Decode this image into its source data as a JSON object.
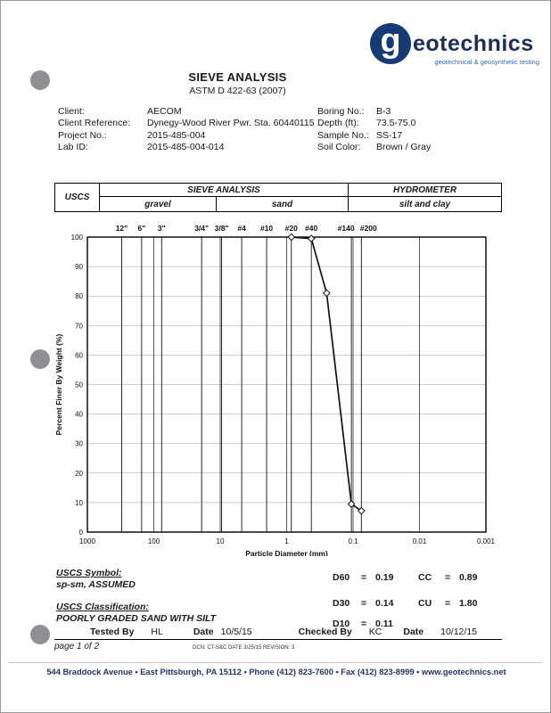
{
  "logo": {
    "g": "g",
    "name_rest": "eotechnics",
    "tagline": "geotechnical & geosynthetic testing"
  },
  "title": "SIEVE ANALYSIS",
  "subtitle": "ASTM D 422-63 (2007)",
  "info": {
    "left": [
      {
        "label": "Client:",
        "value": "AECOM"
      },
      {
        "label": "Client Reference:",
        "value": "Dynegy-Wood River Pwr. Sta. 60440115"
      },
      {
        "label": "Project No.:",
        "value": "2015-485-004"
      },
      {
        "label": "Lab ID:",
        "value": "2015-485-004-014"
      }
    ],
    "right": [
      {
        "label": "Boring No.:",
        "value": "B-3"
      },
      {
        "label": "Depth (ft):",
        "value": "73.5-75.0"
      },
      {
        "label": "Sample No.:",
        "value": "SS-17"
      },
      {
        "label": "Soil Color:",
        "value": "Brown / Gray"
      }
    ]
  },
  "classification_table": {
    "uscs": "USCS",
    "sieve_analysis": "SIEVE ANALYSIS",
    "hydrometer": "HYDROMETER",
    "gravel": "gravel",
    "sand": "sand",
    "silt_and_clay": "silt and clay"
  },
  "chart_data": {
    "type": "line",
    "title": "",
    "xlabel": "Particle Diameter (mm)",
    "ylabel": "Percent Finer By Weight (%)",
    "x_scale": "log",
    "xlim": [
      1000,
      0.001
    ],
    "ylim": [
      0,
      100
    ],
    "x_ticks": [
      "1000",
      "100",
      "10",
      "1",
      "0.1",
      "0.01",
      "0.001"
    ],
    "y_tick_step": 10,
    "grid": true,
    "sieves": [
      {
        "label": "12\"",
        "size_mm": 304.8
      },
      {
        "label": "6\"",
        "size_mm": 152.4
      },
      {
        "label": "3\"",
        "size_mm": 76.2
      },
      {
        "label": "3/4\"",
        "size_mm": 19.05
      },
      {
        "label": "3/8\"",
        "size_mm": 9.525
      },
      {
        "label": "#4",
        "size_mm": 4.75
      },
      {
        "label": "#10",
        "size_mm": 2.0
      },
      {
        "label": "#20",
        "size_mm": 0.85
      },
      {
        "label": "#40",
        "size_mm": 0.425
      },
      {
        "label": "#140",
        "size_mm": 0.106,
        "dx": -6
      },
      {
        "label": "#200",
        "size_mm": 0.075,
        "dx": 8
      }
    ],
    "series": [
      {
        "name": "Grain Size Distribution",
        "points": [
          {
            "d": 0.85,
            "p": 100
          },
          {
            "d": 0.425,
            "p": 99.5
          },
          {
            "d": 0.25,
            "p": 81
          },
          {
            "d": 0.106,
            "p": 9.5
          },
          {
            "d": 0.075,
            "p": 7.2
          }
        ]
      }
    ]
  },
  "results": {
    "uscs_symbol_label": "USCS Symbol:",
    "uscs_symbol": "sp-sm, ASSUMED",
    "uscs_classification_label": "USCS Classification:",
    "uscs_classification": "POORLY GRADED SAND WITH SILT",
    "stats": [
      {
        "l1": "D60",
        "e1": "=",
        "v1": "0.19",
        "l2": "CC",
        "e2": "=",
        "v2": "0.89"
      },
      {
        "l1": "D30",
        "e1": "=",
        "v1": "0.14",
        "l2": "CU",
        "e2": "=",
        "v2": "1.80"
      },
      {
        "l1": "D10",
        "e1": "=",
        "v1": "0.11",
        "l2": "",
        "e2": "",
        "v2": ""
      }
    ]
  },
  "signoff": {
    "tested_by_label": "Tested By",
    "tested_by": "HL",
    "date1_label": "Date",
    "date1": "10/5/15",
    "checked_by_label": "Checked By",
    "checked_by": "KC",
    "date2_label": "Date",
    "date2": "10/12/15",
    "page_label": "page 1 of 2",
    "doc_control": "DCN: CT-S&C  DATE 3/25/15  REVISION: 3"
  },
  "footer": {
    "address": "544 Braddock Avenue  •  East Pittsburgh, PA 15112  •  Phone (412) 823-7600  •  Fax (412) 823-8999  •  www.geotechnics.net"
  }
}
